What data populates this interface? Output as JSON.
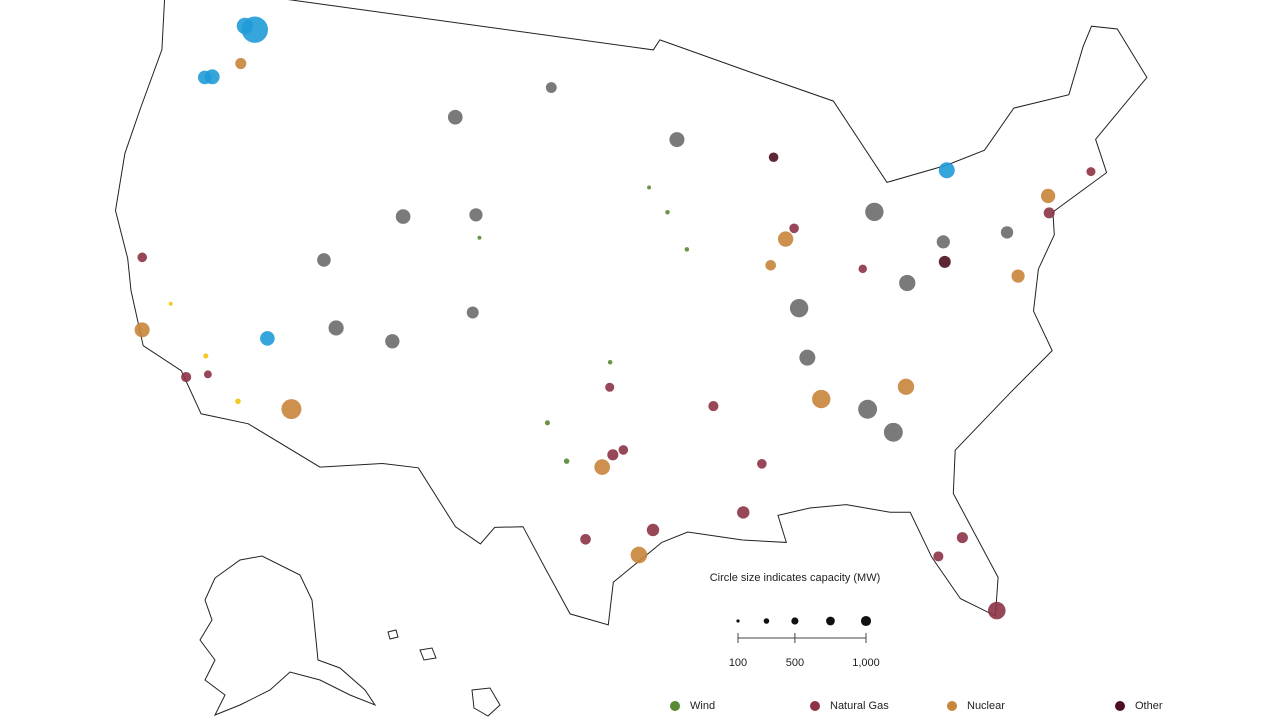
{
  "map": {
    "size_legend": {
      "title": "Circle size indicates capacity (MW)",
      "range": [
        100,
        1000
      ],
      "circles": [
        100,
        300,
        500,
        750,
        1000
      ],
      "ticks": [
        {
          "value": 100,
          "label": "100"
        },
        {
          "value": 500,
          "label": "500"
        },
        {
          "value": 1000,
          "label": "1,000"
        }
      ]
    },
    "legend": [
      {
        "name": "Wind",
        "color": "#5a8a34"
      },
      {
        "name": "Natural Gas",
        "color": "#8d3346"
      },
      {
        "name": "Nuclear",
        "color": "#c8843a"
      },
      {
        "name": "Other",
        "color": "#4b0f1f"
      }
    ],
    "plants": [
      {
        "lon": -118.98,
        "lat": 47.95,
        "mw": 6809,
        "color": "#1f9bd7"
      },
      {
        "lon": -119.6,
        "lat": 48.0,
        "mw": 2620,
        "color": "#1f9bd7"
      },
      {
        "lon": -120.7,
        "lat": 45.7,
        "mw": 2160,
        "color": "#1f9bd7"
      },
      {
        "lon": -121.1,
        "lat": 45.6,
        "mw": 1800,
        "color": "#1f9bd7"
      },
      {
        "lon": -119.3,
        "lat": 46.5,
        "mw": 1200,
        "color": "#c8843a"
      },
      {
        "lon": -106.6,
        "lat": 45.9,
        "mw": 2100,
        "color": "#6b6b6b"
      },
      {
        "lon": -108.8,
        "lat": 41.7,
        "mw": 2100,
        "color": "#6b6b6b"
      },
      {
        "lon": -108.5,
        "lat": 36.7,
        "mw": 2000,
        "color": "#6b6b6b"
      },
      {
        "lon": -111.4,
        "lat": 36.9,
        "mw": 2250,
        "color": "#6b6b6b"
      },
      {
        "lon": -114.7,
        "lat": 36.0,
        "mw": 2080,
        "color": "#1f9bd7"
      },
      {
        "lon": -112.9,
        "lat": 33.4,
        "mw": 3900,
        "color": "#c8843a"
      },
      {
        "lon": -120.85,
        "lat": 35.2,
        "mw": 2200,
        "color": "#c8843a"
      },
      {
        "lon": -112.6,
        "lat": 39.5,
        "mw": 1800,
        "color": "#6b6b6b"
      },
      {
        "lon": -104.6,
        "lat": 38.2,
        "mw": 1400,
        "color": "#6b6b6b"
      },
      {
        "lon": -104.9,
        "lat": 42.1,
        "mw": 1700,
        "color": "#6b6b6b"
      },
      {
        "lon": -101.2,
        "lat": 47.4,
        "mw": 1150,
        "color": "#6b6b6b"
      },
      {
        "lon": -93.9,
        "lat": 45.4,
        "mw": 2200,
        "color": "#6b6b6b"
      },
      {
        "lon": -95.4,
        "lat": 29.8,
        "mw": 1500,
        "color": "#8d3346"
      },
      {
        "lon": -97.3,
        "lat": 32.8,
        "mw": 1200,
        "color": "#8d3346"
      },
      {
        "lon": -96.8,
        "lat": 33.0,
        "mw": 900,
        "color": "#8d3346"
      },
      {
        "lon": -98.5,
        "lat": 29.4,
        "mw": 1100,
        "color": "#8d3346"
      },
      {
        "lon": -96.05,
        "lat": 28.8,
        "mw": 2700,
        "color": "#c8843a"
      },
      {
        "lon": -97.8,
        "lat": 32.3,
        "mw": 2400,
        "color": "#c8843a"
      },
      {
        "lon": -83.8,
        "lat": 33.06,
        "mw": 3500,
        "color": "#6b6b6b"
      },
      {
        "lon": -87.8,
        "lat": 38.4,
        "mw": 3300,
        "color": "#6b6b6b"
      },
      {
        "lon": -84.9,
        "lat": 34.1,
        "mw": 3500,
        "color": "#6b6b6b"
      },
      {
        "lon": -83.3,
        "lat": 41.9,
        "mw": 3300,
        "color": "#6b6b6b"
      },
      {
        "lon": -82.1,
        "lat": 38.9,
        "mw": 2600,
        "color": "#6b6b6b"
      },
      {
        "lon": -87.6,
        "lat": 36.4,
        "mw": 2500,
        "color": "#6b6b6b"
      },
      {
        "lon": -87.1,
        "lat": 34.7,
        "mw": 3300,
        "color": "#c8843a"
      },
      {
        "lon": -82.9,
        "lat": 34.8,
        "mw": 2600,
        "color": "#c8843a"
      },
      {
        "lon": -80.3,
        "lat": 25.4,
        "mw": 3000,
        "color": "#8d3346"
      },
      {
        "lon": -81.3,
        "lat": 28.5,
        "mw": 1200,
        "color": "#8d3346"
      },
      {
        "lon": -82.5,
        "lat": 27.9,
        "mw": 1000,
        "color": "#8d3346"
      },
      {
        "lon": -76.4,
        "lat": 38.4,
        "mw": 1700,
        "color": "#c8843a"
      },
      {
        "lon": -73.95,
        "lat": 41.27,
        "mw": 2000,
        "color": "#c8843a"
      },
      {
        "lon": -79.05,
        "lat": 43.1,
        "mw": 2500,
        "color": "#1f9bd7"
      },
      {
        "lon": -80.0,
        "lat": 39.5,
        "mw": 1400,
        "color": "#4b0f1f"
      },
      {
        "lon": -88.5,
        "lat": 44.5,
        "mw": 900,
        "color": "#4b0f1f"
      },
      {
        "lon": -99.5,
        "lat": 32.5,
        "mw": 300,
        "color": "#5a8a34"
      },
      {
        "lon": -100.5,
        "lat": 34.0,
        "mw": 250,
        "color": "#5a8a34"
      },
      {
        "lon": -97.5,
        "lat": 36.5,
        "mw": 200,
        "color": "#5a8a34"
      },
      {
        "lon": -94.5,
        "lat": 42.5,
        "mw": 200,
        "color": "#5a8a34"
      },
      {
        "lon": -95.5,
        "lat": 43.5,
        "mw": 150,
        "color": "#5a8a34"
      },
      {
        "lon": -93.5,
        "lat": 41.0,
        "mw": 200,
        "color": "#5a8a34"
      },
      {
        "lon": -104.6,
        "lat": 41.2,
        "mw": 150,
        "color": "#5a8a34"
      },
      {
        "lon": -115.5,
        "lat": 33.3,
        "mw": 300,
        "color": "#f4c20d"
      },
      {
        "lon": -117.5,
        "lat": 34.8,
        "mw": 250,
        "color": "#f4c20d"
      },
      {
        "lon": -119.8,
        "lat": 36.5,
        "mw": 150,
        "color": "#f4c20d"
      },
      {
        "lon": -118.2,
        "lat": 33.8,
        "mw": 1000,
        "color": "#8d3346"
      },
      {
        "lon": -121.8,
        "lat": 38.0,
        "mw": 900,
        "color": "#8d3346"
      },
      {
        "lon": -117.2,
        "lat": 34.1,
        "mw": 600,
        "color": "#8d3346"
      },
      {
        "lon": -91.2,
        "lat": 30.4,
        "mw": 1500,
        "color": "#8d3346"
      },
      {
        "lon": -90.2,
        "lat": 32.3,
        "mw": 900,
        "color": "#8d3346"
      },
      {
        "lon": -92.4,
        "lat": 34.7,
        "mw": 1000,
        "color": "#8d3346"
      },
      {
        "lon": -97.5,
        "lat": 35.5,
        "mw": 800,
        "color": "#8d3346"
      },
      {
        "lon": -74.1,
        "lat": 40.6,
        "mw": 1200,
        "color": "#8d3346"
      },
      {
        "lon": -71.4,
        "lat": 41.8,
        "mw": 800,
        "color": "#8d3346"
      },
      {
        "lon": -87.7,
        "lat": 41.6,
        "mw": 900,
        "color": "#8d3346"
      },
      {
        "lon": -84.3,
        "lat": 39.7,
        "mw": 700,
        "color": "#8d3346"
      },
      {
        "lon": -79.9,
        "lat": 40.3,
        "mw": 1700,
        "color": "#6b6b6b"
      },
      {
        "lon": -76.5,
        "lat": 40.2,
        "mw": 1500,
        "color": "#6b6b6b"
      },
      {
        "lon": -88.2,
        "lat": 41.2,
        "mw": 2300,
        "color": "#c8843a"
      },
      {
        "lon": -89.1,
        "lat": 40.2,
        "mw": 1100,
        "color": "#c8843a"
      }
    ]
  }
}
